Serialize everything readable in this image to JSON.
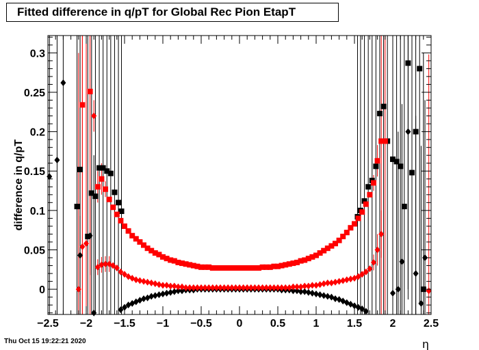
{
  "page": {
    "title": "Fitted difference in q/pT  for Global Rec Pion EtapT",
    "timestamp": "Thu Oct 15 19:22:21 2020"
  },
  "chart_data": {
    "type": "scatter",
    "title": "Fitted difference in q/pT  for Global Rec Pion EtapT",
    "xlabel": "η",
    "ylabel": "difference in q/pT",
    "xlim": [
      -2.5,
      2.5
    ],
    "ylim": [
      -0.032,
      0.322
    ],
    "xticks": [
      "−2.5",
      "−2",
      "−1.5",
      "−1",
      "−0.5",
      "0",
      "0.5",
      "1",
      "1.5",
      "2",
      "2.5"
    ],
    "yticks": [
      "0",
      "0.05",
      "0.1",
      "0.15",
      "0.2",
      "0.25",
      "0.3"
    ],
    "grid": false,
    "colors": {
      "black": "#000000",
      "red": "#ff0000"
    },
    "series": [
      {
        "color": "#000000",
        "marker": "diamond",
        "x": [
          -2.48,
          -2.38,
          -2.3,
          -2.08,
          -1.95,
          -1.9
        ],
        "y": [
          0.143,
          0.164,
          0.262,
          0.043,
          0.068,
          -0.03
        ],
        "err": [
          0.3,
          0.3,
          0.3,
          0.05,
          0.05,
          0.2
        ]
      },
      {
        "color": "#000000",
        "marker": "diamond",
        "x": [
          -1.55,
          -1.5,
          -1.45,
          -1.4,
          -1.35,
          -1.3,
          -1.25,
          -1.2,
          -1.15,
          -1.1,
          -1.05,
          -1.0,
          -0.95,
          -0.9,
          -0.85,
          -0.8,
          -0.75,
          -0.7,
          -0.65,
          -0.6,
          -0.55,
          -0.5,
          -0.45,
          -0.4,
          -0.35,
          -0.3,
          -0.25,
          -0.2,
          -0.15,
          -0.1,
          -0.05,
          0.0,
          0.05,
          0.1,
          0.15,
          0.2,
          0.25,
          0.3,
          0.35,
          0.4,
          0.45,
          0.5,
          0.55,
          0.6,
          0.65,
          0.7,
          0.75,
          0.8,
          0.85,
          0.9,
          0.95,
          1.0,
          1.05,
          1.1,
          1.15,
          1.2,
          1.25,
          1.3,
          1.35,
          1.4,
          1.45,
          1.5,
          1.55,
          1.6,
          1.65
        ],
        "y": [
          -0.026,
          -0.023,
          -0.02,
          -0.018,
          -0.016,
          -0.014,
          -0.012,
          -0.011,
          -0.009,
          -0.008,
          -0.007,
          -0.006,
          -0.005,
          -0.004,
          -0.003,
          -0.002,
          -0.002,
          -0.001,
          -0.001,
          -0.001,
          0.0,
          0.0,
          0.0,
          0.0,
          0.0,
          0.0,
          0.0,
          0.0,
          0.0,
          0.0,
          0.0,
          0.0,
          0.0,
          0.0,
          0.0,
          0.0,
          0.0,
          0.0,
          0.0,
          0.0,
          0.0,
          0.0,
          -0.001,
          -0.001,
          -0.001,
          -0.002,
          -0.002,
          -0.003,
          -0.003,
          -0.004,
          -0.005,
          -0.006,
          -0.007,
          -0.008,
          -0.009,
          -0.01,
          -0.012,
          -0.013,
          -0.015,
          -0.017,
          -0.019,
          -0.021,
          -0.023,
          -0.025,
          -0.028
        ],
        "err": []
      },
      {
        "color": "#000000",
        "marker": "diamond",
        "x": [
          2.0,
          2.07,
          2.12,
          2.2,
          2.3,
          2.37,
          2.42
        ],
        "y": [
          -0.005,
          0.0,
          0.035,
          0.2,
          0.02,
          -0.018,
          0.04
        ],
        "err": [
          0.2,
          0.2,
          0.2,
          0.2,
          0.2,
          0.2,
          0.2
        ]
      },
      {
        "color": "#000000",
        "marker": "square",
        "x": [
          -2.12,
          -2.08,
          -1.98,
          -1.93,
          -1.88,
          -1.83,
          -1.78,
          -1.73,
          -1.68,
          -1.63,
          -1.58,
          -1.54,
          1.54,
          1.58,
          1.63,
          1.68,
          1.73,
          1.78,
          1.83,
          1.88,
          1.93,
          2.0,
          2.05,
          2.1,
          2.15,
          2.2,
          2.25,
          2.3,
          2.35,
          2.4
        ],
        "y": [
          0.105,
          0.152,
          0.067,
          0.122,
          0.118,
          0.154,
          0.154,
          0.15,
          0.147,
          0.123,
          0.11,
          0.099,
          0.092,
          0.1,
          0.112,
          0.13,
          0.138,
          0.156,
          0.223,
          0.232,
          0.188,
          0.165,
          0.162,
          0.156,
          0.105,
          0.287,
          0.148,
          0.2,
          0.28,
          0.0
        ],
        "err": [
          0.3,
          0.3,
          0.3,
          0.3,
          0.3,
          0.3,
          0.3,
          0.3,
          0.3,
          0.3,
          0.3,
          0.3,
          0.3,
          0.3,
          0.3,
          0.3,
          0.3,
          0.3,
          0.3,
          0.3,
          0.3,
          0.3,
          0.3,
          0.3,
          0.3,
          0.3,
          0.3,
          0.3,
          0.3,
          0.3
        ]
      },
      {
        "color": "#ff0000",
        "marker": "diamond",
        "x": [
          -2.1,
          -2.05,
          -2.0,
          -1.9,
          -1.85,
          -1.8,
          -1.75,
          -1.7,
          -1.65,
          -1.6,
          -1.55,
          -1.5,
          -1.45,
          -1.4,
          -1.35,
          -1.3,
          -1.25,
          -1.2,
          -1.15,
          -1.1,
          -1.05,
          -1.0,
          -0.95,
          -0.9,
          -0.85,
          -0.8,
          -0.75,
          -0.7,
          -0.65,
          -0.6,
          -0.55,
          -0.5,
          -0.45,
          -0.4,
          -0.35,
          -0.3,
          -0.25,
          -0.2,
          -0.15,
          -0.1,
          -0.05,
          0.0,
          0.05,
          0.1,
          0.15,
          0.2,
          0.25,
          0.3,
          0.35,
          0.4,
          0.45,
          0.5,
          0.55,
          0.6,
          0.65,
          0.7,
          0.75,
          0.8,
          0.85,
          0.9,
          0.95,
          1.0,
          1.05,
          1.1,
          1.15,
          1.2,
          1.25,
          1.3,
          1.35,
          1.4,
          1.45,
          1.5,
          1.55,
          1.6,
          1.65,
          1.7,
          1.75,
          1.8,
          1.85,
          2.47
        ],
        "y": [
          0.0,
          0.054,
          0.058,
          0.22,
          0.028,
          0.031,
          0.032,
          0.032,
          0.03,
          0.027,
          0.022,
          0.019,
          0.016,
          0.014,
          0.012,
          0.011,
          0.01,
          0.009,
          0.008,
          0.007,
          0.006,
          0.005,
          0.005,
          0.004,
          0.004,
          0.003,
          0.003,
          0.002,
          0.002,
          0.002,
          0.002,
          0.002,
          0.002,
          0.002,
          0.002,
          0.002,
          0.002,
          0.002,
          0.002,
          0.002,
          0.002,
          0.002,
          0.002,
          0.002,
          0.002,
          0.002,
          0.002,
          0.002,
          0.002,
          0.002,
          0.002,
          0.002,
          0.002,
          0.002,
          0.002,
          0.003,
          0.003,
          0.003,
          0.004,
          0.004,
          0.005,
          0.005,
          0.006,
          0.007,
          0.008,
          0.008,
          0.009,
          0.01,
          0.011,
          0.012,
          0.013,
          0.014,
          0.016,
          0.019,
          0.022,
          0.026,
          0.034,
          0.05,
          0.07,
          -0.002
        ],
        "err": [
          0.3,
          0.3,
          0.3,
          0.02,
          0.01,
          0.01,
          0.01,
          0.01,
          0.0,
          0.0,
          0.0,
          0.0,
          0.0,
          0.0,
          0.0,
          0.0,
          0.0,
          0.0,
          0.0,
          0.0,
          0.0,
          0.0,
          0.0,
          0.0,
          0.0,
          0.0,
          0.0,
          0.0,
          0.0,
          0.0,
          0.0,
          0.0,
          0.0,
          0.0,
          0.0,
          0.0,
          0.0,
          0.0,
          0.0,
          0.0,
          0.0,
          0.0,
          0.0,
          0.0,
          0.0,
          0.0,
          0.0,
          0.0,
          0.0,
          0.0,
          0.0,
          0.0,
          0.0,
          0.0,
          0.0,
          0.0,
          0.0,
          0.0,
          0.0,
          0.0,
          0.0,
          0.0,
          0.0,
          0.0,
          0.0,
          0.0,
          0.0,
          0.0,
          0.0,
          0.0,
          0.0,
          0.0,
          0.0,
          0.0,
          0.0,
          0.0,
          0.01,
          0.02,
          0.03,
          0.3
        ]
      },
      {
        "color": "#ff0000",
        "marker": "square",
        "x": [
          -2.05,
          -1.95,
          -1.85,
          -1.8,
          -1.75,
          -1.7,
          -1.65,
          -1.6,
          -1.55,
          -1.5,
          -1.45,
          -1.4,
          -1.35,
          -1.3,
          -1.25,
          -1.2,
          -1.15,
          -1.1,
          -1.05,
          -1.0,
          -0.95,
          -0.9,
          -0.85,
          -0.8,
          -0.75,
          -0.7,
          -0.65,
          -0.6,
          -0.55,
          -0.5,
          -0.45,
          -0.4,
          -0.35,
          -0.3,
          -0.25,
          -0.2,
          -0.15,
          -0.1,
          -0.05,
          0.0,
          0.05,
          0.1,
          0.15,
          0.2,
          0.25,
          0.3,
          0.35,
          0.4,
          0.45,
          0.5,
          0.55,
          0.6,
          0.65,
          0.7,
          0.75,
          0.8,
          0.85,
          0.9,
          0.95,
          1.0,
          1.05,
          1.1,
          1.15,
          1.2,
          1.25,
          1.3,
          1.35,
          1.4,
          1.45,
          1.5,
          1.55,
          1.6,
          1.65,
          1.7,
          1.75,
          1.8,
          1.85,
          1.9
        ],
        "y": [
          0.234,
          0.251,
          0.13,
          0.14,
          0.127,
          0.114,
          0.104,
          0.095,
          0.087,
          0.08,
          0.074,
          0.068,
          0.064,
          0.06,
          0.056,
          0.052,
          0.049,
          0.046,
          0.044,
          0.041,
          0.039,
          0.037,
          0.036,
          0.034,
          0.033,
          0.032,
          0.031,
          0.03,
          0.029,
          0.028,
          0.028,
          0.028,
          0.027,
          0.027,
          0.027,
          0.027,
          0.027,
          0.027,
          0.027,
          0.027,
          0.027,
          0.027,
          0.027,
          0.027,
          0.027,
          0.028,
          0.028,
          0.028,
          0.029,
          0.029,
          0.03,
          0.031,
          0.032,
          0.033,
          0.034,
          0.036,
          0.037,
          0.039,
          0.041,
          0.043,
          0.046,
          0.049,
          0.052,
          0.055,
          0.058,
          0.062,
          0.067,
          0.072,
          0.078,
          0.083,
          0.09,
          0.098,
          0.108,
          0.12,
          0.135,
          0.163,
          0.188,
          0.188
        ],
        "err": [
          0.3,
          0.3,
          0.02,
          0.02,
          0.01,
          0.0,
          0.0,
          0.0,
          0.0,
          0.0,
          0.0,
          0.0,
          0.0,
          0.0,
          0.0,
          0.0,
          0.0,
          0.0,
          0.0,
          0.0,
          0.0,
          0.0,
          0.0,
          0.0,
          0.0,
          0.0,
          0.0,
          0.0,
          0.0,
          0.0,
          0.0,
          0.0,
          0.0,
          0.0,
          0.0,
          0.0,
          0.0,
          0.0,
          0.0,
          0.0,
          0.0,
          0.0,
          0.0,
          0.0,
          0.0,
          0.0,
          0.0,
          0.0,
          0.0,
          0.0,
          0.0,
          0.0,
          0.0,
          0.0,
          0.0,
          0.0,
          0.0,
          0.0,
          0.0,
          0.0,
          0.0,
          0.0,
          0.0,
          0.0,
          0.0,
          0.0,
          0.0,
          0.0,
          0.0,
          0.0,
          0.0,
          0.0,
          0.0,
          0.0,
          0.01,
          0.02,
          0.3,
          0.3
        ]
      }
    ]
  }
}
